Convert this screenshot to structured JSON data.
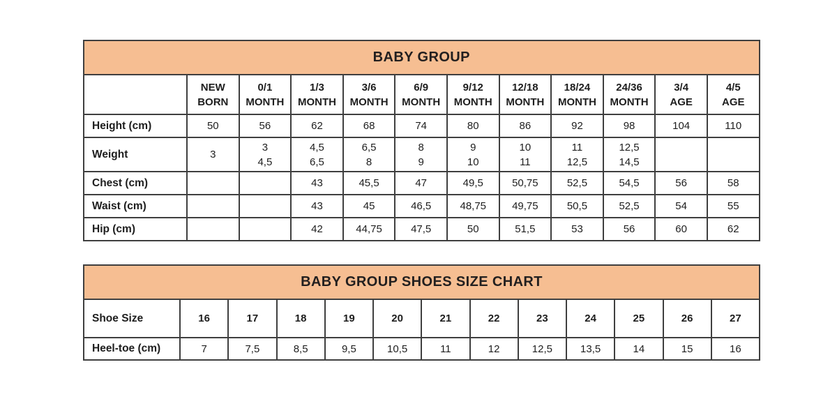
{
  "colors": {
    "title_band_bg": "#f6be92",
    "table_border": "#3f3f3f",
    "text": "#1e1e1e",
    "page_bg": "#ffffff"
  },
  "size_table": {
    "title": "BABY GROUP",
    "column_headers": [
      "NEW\nBORN",
      "0/1\nMONTH",
      "1/3\nMONTH",
      "3/6\nMONTH",
      "6/9\nMONTH",
      "9/12\nMONTH",
      "12/18\nMONTH",
      "18/24\nMONTH",
      "24/36\nMONTH",
      "3/4\nAGE",
      "4/5\nAGE"
    ],
    "rows": [
      {
        "label": "Height (cm)",
        "values": [
          "50",
          "56",
          "62",
          "68",
          "74",
          "80",
          "86",
          "92",
          "98",
          "104",
          "110"
        ]
      },
      {
        "label": "Weight",
        "values": [
          "3",
          "3\n4,5",
          "4,5\n6,5",
          "6,5\n8",
          "8\n9",
          "9\n10",
          "10\n11",
          "11\n12,5",
          "12,5\n14,5",
          "",
          ""
        ]
      },
      {
        "label": "Chest (cm)",
        "values": [
          "",
          "",
          "43",
          "45,5",
          "47",
          "49,5",
          "50,75",
          "52,5",
          "54,5",
          "56",
          "58"
        ]
      },
      {
        "label": "Waist (cm)",
        "values": [
          "",
          "",
          "43",
          "45",
          "46,5",
          "48,75",
          "49,75",
          "50,5",
          "52,5",
          "54",
          "55"
        ]
      },
      {
        "label": "Hip (cm)",
        "values": [
          "",
          "",
          "42",
          "44,75",
          "47,5",
          "50",
          "51,5",
          "53",
          "56",
          "60",
          "62"
        ]
      }
    ]
  },
  "shoes_table": {
    "title": "BABY GROUP SHOES SIZE CHART",
    "rows": [
      {
        "label": "Shoe Size",
        "values": [
          "16",
          "17",
          "18",
          "19",
          "20",
          "21",
          "22",
          "23",
          "24",
          "25",
          "26",
          "27"
        ],
        "bold": true
      },
      {
        "label": "Heel-toe (cm)",
        "values": [
          "7",
          "7,5",
          "8,5",
          "9,5",
          "10,5",
          "11",
          "12",
          "12,5",
          "13,5",
          "14",
          "15",
          "16"
        ],
        "bold": false
      }
    ]
  }
}
